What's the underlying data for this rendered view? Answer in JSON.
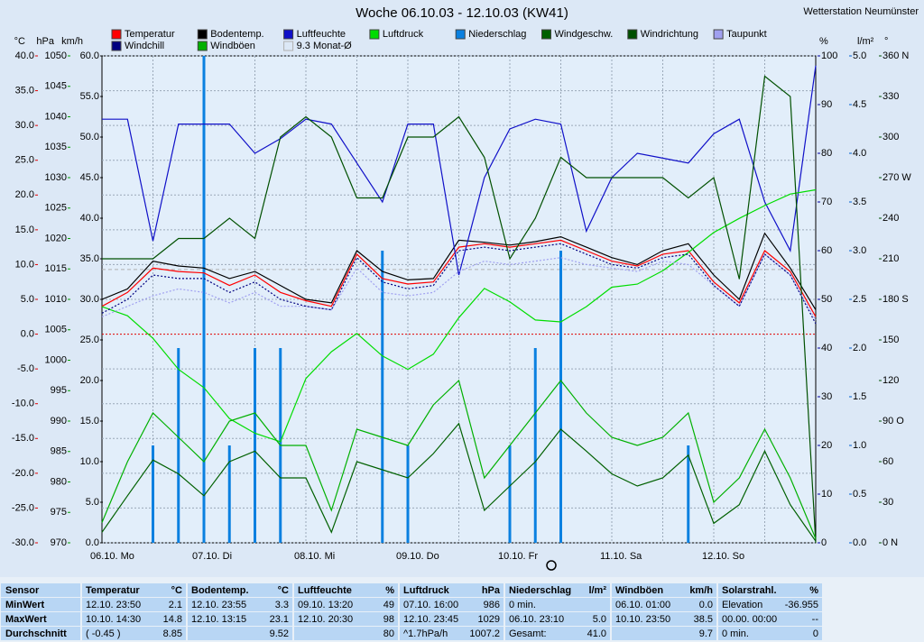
{
  "chart_data": {
    "type": "line",
    "title": "Woche 06.10.03 - 12.10.03 (KW41)",
    "station": "Wetterstation Neumünster",
    "grid": true,
    "categories": [
      "06.10. Mo",
      null,
      null,
      null,
      "07.10. Di",
      null,
      null,
      null,
      "08.10. Mi",
      null,
      null,
      null,
      "09.10. Do",
      null,
      null,
      null,
      "10.10. Fr",
      null,
      null,
      null,
      "11.10. Sa",
      null,
      null,
      null,
      "12.10. So",
      null,
      null,
      null,
      null
    ],
    "axes": [
      {
        "label": "°C",
        "side": "left",
        "color": "#e00000",
        "lim": [
          -30,
          40
        ],
        "ticks": [
          {
            "value": -30,
            "label": "-30.0"
          },
          {
            "value": -25,
            "label": "-25.0"
          },
          {
            "value": -20,
            "label": "-20.0"
          },
          {
            "value": -15,
            "label": "-15.0"
          },
          {
            "value": -10,
            "label": "-10.0"
          },
          {
            "value": -5,
            "label": "-5.0"
          },
          {
            "value": 0,
            "label": "0.0"
          },
          {
            "value": 5,
            "label": "5.0"
          },
          {
            "value": 10,
            "label": "10.0"
          },
          {
            "value": 15,
            "label": "15.0"
          },
          {
            "value": 20,
            "label": "20.0"
          },
          {
            "value": 25,
            "label": "25.0"
          },
          {
            "value": 30,
            "label": "30.0"
          },
          {
            "value": 35,
            "label": "35.0"
          },
          {
            "value": 40,
            "label": "40.0"
          }
        ]
      },
      {
        "label": "hPa",
        "side": "left",
        "color": "#00a000",
        "lim": [
          970,
          1050
        ],
        "ticks": [
          970,
          975,
          980,
          985,
          990,
          995,
          1000,
          1005,
          1010,
          1015,
          1020,
          1025,
          1030,
          1035,
          1040,
          1045,
          1050
        ]
      },
      {
        "label": "km/h",
        "side": "left",
        "color": "#000000",
        "lim": [
          0,
          60
        ],
        "ticks": [
          {
            "value": 0,
            "label": "0.0"
          },
          {
            "value": 5,
            "label": "5.0"
          },
          {
            "value": 10,
            "label": "10.0"
          },
          {
            "value": 15,
            "label": "15.0"
          },
          {
            "value": 20,
            "label": "20.0"
          },
          {
            "value": 25,
            "label": "25.0"
          },
          {
            "value": 30,
            "label": "30.0"
          },
          {
            "value": 35,
            "label": "35.0"
          },
          {
            "value": 40,
            "label": "40.0"
          },
          {
            "value": 45,
            "label": "45.0"
          },
          {
            "value": 50,
            "label": "50.0"
          },
          {
            "value": 55,
            "label": "55.0"
          },
          {
            "value": 60,
            "label": "60.0"
          }
        ]
      },
      {
        "label": "%",
        "side": "right",
        "color": "#0000a0",
        "lim": [
          0,
          100
        ],
        "ticks": [
          0,
          10,
          20,
          30,
          40,
          50,
          60,
          70,
          80,
          90,
          100
        ]
      },
      {
        "label": "l/m²",
        "side": "right",
        "color": "#0060d0",
        "lim": [
          0,
          5
        ],
        "ticks": [
          {
            "value": 0,
            "label": "0.0"
          },
          {
            "value": 0.5,
            "label": "0.5"
          },
          {
            "value": 1,
            "label": "1.0"
          },
          {
            "value": 1.5,
            "label": "1.5"
          },
          {
            "value": 2,
            "label": "2.0"
          },
          {
            "value": 2.5,
            "label": "2.5"
          },
          {
            "value": 3,
            "label": "3.0"
          },
          {
            "value": 3.5,
            "label": "3.5"
          },
          {
            "value": 4,
            "label": "4.0"
          },
          {
            "value": 4.5,
            "label": "4.5"
          },
          {
            "value": 5,
            "label": "5.0"
          }
        ]
      },
      {
        "label": "°",
        "side": "right",
        "color": "#005000",
        "lim": [
          0,
          360
        ],
        "ticks": [
          {
            "value": 0,
            "label": "0 N"
          },
          30,
          60,
          {
            "value": 90,
            "label": "90 O"
          },
          120,
          150,
          {
            "value": 180,
            "label": "180 S"
          },
          210,
          240,
          {
            "value": 270,
            "label": "270 W"
          },
          300,
          330,
          {
            "value": 360,
            "label": "360 N"
          }
        ]
      }
    ],
    "series": [
      {
        "name": "Temperatur",
        "color": "#ff0000",
        "axis": 0,
        "values": [
          4.0,
          6.0,
          9.5,
          9.0,
          8.8,
          7.0,
          8.5,
          6.0,
          4.8,
          4.0,
          11.5,
          8.0,
          7.2,
          7.5,
          12.5,
          13.0,
          12.5,
          13.0,
          13.5,
          12.0,
          10.5,
          9.8,
          11.5,
          12.0,
          7.5,
          4.5,
          12.0,
          9.0,
          2.5
        ]
      },
      {
        "name": "Bodentemp.",
        "color": "#000000",
        "axis": 0,
        "values": [
          5.0,
          6.5,
          10.5,
          9.8,
          9.5,
          8.0,
          9.0,
          7.0,
          5.0,
          4.5,
          12.0,
          9.0,
          7.8,
          8.0,
          13.5,
          13.2,
          12.8,
          13.3,
          14.0,
          12.5,
          11.0,
          10.0,
          12.0,
          13.0,
          8.5,
          5.0,
          14.5,
          9.5,
          3.5
        ]
      },
      {
        "name": "Luftfeuchte",
        "color": "#1010c8",
        "axis": 3,
        "values": [
          87,
          87,
          62,
          86,
          86,
          86,
          80,
          83,
          87,
          86,
          78,
          70,
          86,
          86,
          55,
          75,
          85,
          87,
          86,
          64,
          75,
          80,
          79,
          78,
          84,
          87,
          70,
          60,
          98
        ]
      },
      {
        "name": "Luftdruck",
        "color": "#00dd00",
        "axis": 1,
        "values": [
          1008.8,
          1007.3,
          1003.6,
          998.5,
          995.5,
          990.4,
          988,
          986.6,
          997,
          1001.4,
          1004.4,
          1000.7,
          998.5,
          1001,
          1007,
          1011.8,
          1009.6,
          1006.6,
          1006.3,
          1008.8,
          1012,
          1012.5,
          1014.7,
          1017.7,
          1021,
          1023.3,
          1025.4,
          1027.3,
          1028
        ]
      },
      {
        "name": "Niederschlag",
        "color": "#0a80e0",
        "axis": 4,
        "style": "bar",
        "values": [
          0,
          0,
          1.0,
          2.0,
          5.0,
          1.0,
          2.0,
          2.0,
          0,
          0,
          0,
          3.0,
          1.0,
          0,
          0,
          0,
          1.0,
          2.0,
          3.0,
          0,
          0,
          0,
          0,
          1.0,
          0,
          0,
          0,
          0,
          0
        ]
      },
      {
        "name": "Windgeschw.",
        "color": "#006000",
        "axis": 2,
        "values": [
          1.3,
          5.8,
          10.2,
          8.5,
          5.8,
          10,
          11.3,
          8,
          8,
          1.3,
          10,
          9,
          8,
          11,
          14.7,
          4,
          7,
          10,
          14,
          11.3,
          8.5,
          7,
          8,
          10.8,
          2.4,
          4.7,
          11.3,
          4.7,
          0.2
        ]
      },
      {
        "name": "Windrichtung",
        "color": "#005000",
        "axis": 5,
        "values": [
          210,
          210,
          210,
          225,
          225,
          240,
          225,
          300,
          315,
          300,
          255,
          255,
          300,
          300,
          315,
          285,
          210,
          240,
          285,
          270,
          270,
          270,
          270,
          255,
          270,
          195,
          345,
          330,
          0
        ]
      },
      {
        "name": "Taupunkt",
        "color": "#a0a0f0",
        "axis": 0,
        "style": "dashed",
        "values": [
          2.5,
          4.0,
          5.5,
          6.5,
          6.0,
          4.5,
          6.0,
          4.0,
          4.0,
          3.5,
          9.5,
          6.0,
          5.5,
          6.0,
          9.0,
          10.5,
          10.0,
          10.5,
          11.0,
          10.0,
          9.5,
          9.0,
          10.5,
          10.0,
          7.0,
          4.0,
          11.5,
          8.5,
          2.0
        ]
      },
      {
        "name": "Windchill",
        "color": "#000080",
        "axis": 0,
        "style": "dashed",
        "values": [
          3.0,
          5.0,
          8.5,
          8.0,
          8.0,
          6.0,
          7.5,
          5.0,
          4.0,
          3.5,
          11.0,
          7.5,
          6.5,
          7.0,
          12.0,
          12.5,
          12.0,
          12.5,
          13.0,
          11.5,
          10.0,
          9.5,
          11.0,
          11.5,
          7.0,
          4.0,
          11.5,
          8.5,
          1.5
        ]
      },
      {
        "name": "Windböen",
        "color": "#00b000",
        "axis": 2,
        "values": [
          2.5,
          10,
          16,
          13,
          10,
          15,
          16,
          12,
          12,
          4,
          14,
          13,
          12,
          17,
          20,
          8,
          12,
          16,
          20,
          16,
          13,
          12,
          13,
          16,
          5,
          8,
          14,
          8,
          0.5
        ]
      }
    ],
    "reference": {
      "name": "9.3 Monat-Ø",
      "value": 9.3,
      "axis": 0,
      "color": "#b0b0b0"
    }
  },
  "table": {
    "header": "Sensor",
    "row_labels": [
      "MinWert",
      "MaxWert",
      "Durchschnitt"
    ],
    "groups": [
      {
        "name": "Temperatur",
        "unit": "°C",
        "rows": [
          {
            "time": "12.10.  23:50",
            "value": "2.1"
          },
          {
            "time": "10.10.  14:30",
            "value": "14.8"
          },
          {
            "time": "( -0.45 )",
            "value": "8.85"
          }
        ]
      },
      {
        "name": "Bodentemp.",
        "unit": "°C",
        "rows": [
          {
            "time": "12.10.  23:55",
            "value": "3.3"
          },
          {
            "time": "12.10.  13:15",
            "value": "23.1"
          },
          {
            "value": "9.52"
          }
        ]
      },
      {
        "name": "Luftfeuchte",
        "unit": "%",
        "rows": [
          {
            "time": "09.10.  13:20",
            "value": "49"
          },
          {
            "time": "12.10.  20:30",
            "value": "98"
          },
          {
            "value": "80"
          }
        ]
      },
      {
        "name": "Luftdruck",
        "unit": "hPa",
        "rows": [
          {
            "time": "07.10.  16:00",
            "value": "986"
          },
          {
            "time": "12.10.  23:45",
            "value": "1029"
          },
          {
            "time": "^1.7hPa/h",
            "value": "1007.2"
          }
        ]
      },
      {
        "name": "Niederschlag",
        "unit": "l/m²",
        "rows": [
          {
            "time": "0 min."
          },
          {
            "time": "06.10.  23:10",
            "value": "5.0"
          },
          {
            "time": "Gesamt:",
            "value": "41.0"
          }
        ]
      },
      {
        "name": "Windböen",
        "unit": "km/h",
        "rows": [
          {
            "time": "06.10.  01:00",
            "value": "0.0"
          },
          {
            "time": "10.10.  23:50",
            "value": "38.5"
          },
          {
            "value": "9.7"
          }
        ]
      },
      {
        "name": "Solarstrahl.",
        "unit": "%",
        "rows": [
          {
            "time": "Elevation",
            "value": "-36.955"
          },
          {
            "time": "00.00.  00:00",
            "value": "--"
          },
          {
            "time": "0 min.",
            "value": "0"
          }
        ]
      }
    ]
  }
}
